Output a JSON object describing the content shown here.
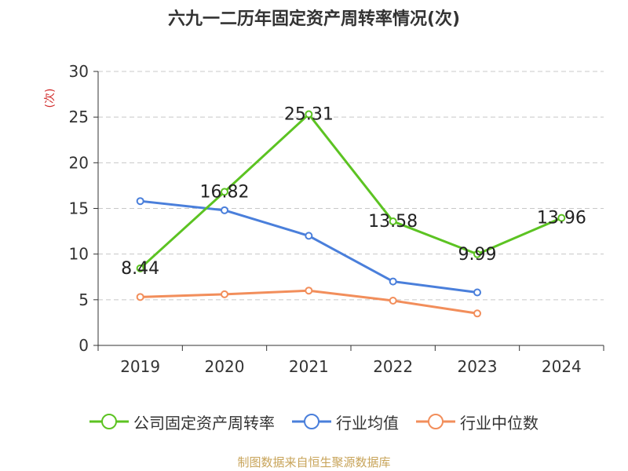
{
  "chart_data": {
    "type": "line",
    "title": "六九一二历年固定资产周转率情况(次)",
    "ylabel": "(次)",
    "xlabel": "",
    "categories": [
      "2019",
      "2020",
      "2021",
      "2022",
      "2023",
      "2024"
    ],
    "ylim": [
      0,
      30
    ],
    "yticks": [
      0,
      5,
      10,
      15,
      20,
      25,
      30
    ],
    "grid": true,
    "legend_position": "bottom",
    "series": [
      {
        "name": "公司固定资产周转率",
        "color": "#5cc322",
        "values": [
          8.44,
          16.82,
          25.31,
          13.58,
          9.99,
          13.96
        ],
        "labels": [
          "8.44",
          "16.82",
          "25.31",
          "13.58",
          "9.99",
          "13.96"
        ]
      },
      {
        "name": "行业均值",
        "color": "#4a7fdb",
        "values": [
          15.8,
          14.8,
          12.0,
          7.0,
          5.8,
          null
        ]
      },
      {
        "name": "行业中位数",
        "color": "#f28e5b",
        "values": [
          5.3,
          5.6,
          6.0,
          4.9,
          3.5,
          null
        ]
      }
    ],
    "source": "制图数据来自恒生聚源数据库"
  }
}
